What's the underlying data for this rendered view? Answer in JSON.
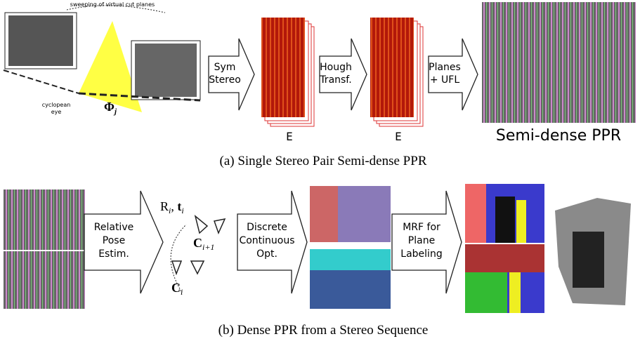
{
  "top": {
    "sweep_label": "sweeping of virtual cut planes",
    "eye_label": [
      "cyclopean",
      "eye"
    ],
    "phi": {
      "symbol": "Φ",
      "sub": "j"
    },
    "arrows": [
      {
        "lines": [
          "Sym",
          "Stereo"
        ]
      },
      {
        "lines": [
          "Hough",
          "Transf."
        ]
      },
      {
        "lines": [
          "Planes",
          "+ UFL"
        ]
      }
    ],
    "volume_labels": [
      "E",
      "E"
    ],
    "result_label": "Semi-dense PPR",
    "caption": "(a) Single Stereo Pair Semi-dense PPR"
  },
  "bottom": {
    "arrows": [
      {
        "lines": [
          "Relative",
          "Pose",
          "Estim."
        ]
      },
      {
        "lines": [
          "Discrete",
          "Continuous",
          "Opt."
        ]
      },
      {
        "lines": [
          "MRF for",
          "Plane",
          "Labeling"
        ]
      }
    ],
    "pose": {
      "rotation": "R",
      "rotation_sub": "i",
      "separator": ", ",
      "translation": "t",
      "translation_sub": "i"
    },
    "cam_next": {
      "symbol": "C",
      "sub": "i+1"
    },
    "cam": {
      "symbol": "C",
      "sub": "i"
    },
    "caption": "(b) Dense PPR from a Stereo Sequence"
  }
}
